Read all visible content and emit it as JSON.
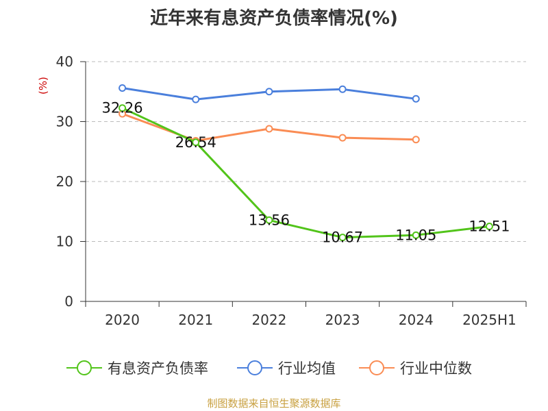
{
  "title": "近年来有息资产负债率情况(%)",
  "source": "制图数据来自恒生聚源数据库",
  "colors": {
    "source": "#c8a040",
    "ylabel": "#cc0000"
  },
  "chart_data": {
    "type": "line",
    "title": "近年来有息资产负债率情况(%)",
    "xlabel": "",
    "ylabel": "(%)",
    "categories": [
      "2020",
      "2021",
      "2022",
      "2023",
      "2024",
      "2025H1"
    ],
    "ylim": [
      0,
      40
    ],
    "yticks": [
      0,
      10,
      20,
      30,
      40
    ],
    "grid": true,
    "legend_position": "bottom",
    "series": [
      {
        "name": "有息资产负债率",
        "color": "#52c41a",
        "values": [
          32.26,
          26.54,
          13.56,
          10.67,
          11.05,
          12.51
        ],
        "labels": [
          "32.26",
          "26.54",
          "13.56",
          "10.67",
          "11.05",
          "12.51"
        ]
      },
      {
        "name": "行业均值",
        "color": "#4a7fdc",
        "values": [
          35.6,
          33.7,
          35.0,
          35.4,
          33.8,
          null
        ]
      },
      {
        "name": "行业中位数",
        "color": "#fa8c54",
        "values": [
          31.3,
          26.8,
          28.8,
          27.3,
          27.0,
          null
        ]
      }
    ]
  }
}
